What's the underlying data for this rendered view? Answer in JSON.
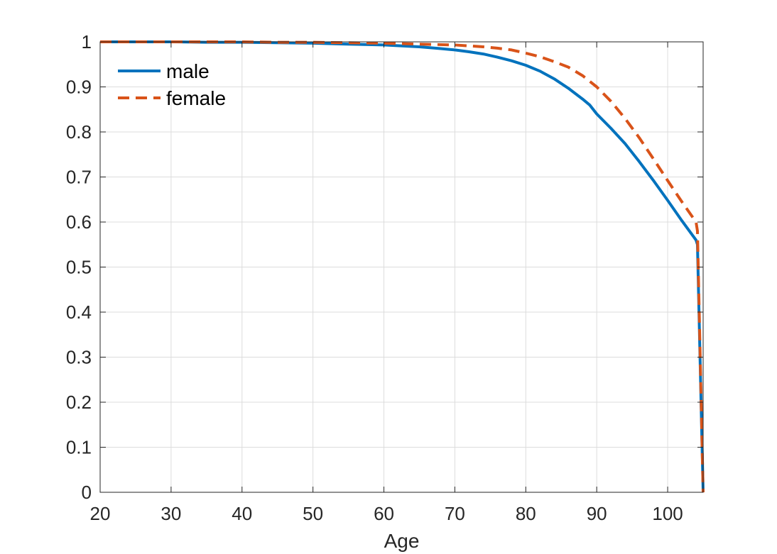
{
  "chart_data": {
    "type": "line",
    "title": "",
    "xlabel": "Age",
    "ylabel": "",
    "xlim": [
      20,
      105
    ],
    "ylim": [
      0,
      1
    ],
    "xticks": [
      20,
      30,
      40,
      50,
      60,
      70,
      80,
      90,
      100
    ],
    "yticks": [
      0,
      0.1,
      0.2,
      0.3,
      0.4,
      0.5,
      0.6,
      0.7,
      0.8,
      0.9,
      1
    ],
    "xtick_labels": [
      "20",
      "30",
      "40",
      "50",
      "60",
      "70",
      "80",
      "90",
      "100"
    ],
    "ytick_labels": [
      "0",
      "0.1",
      "0.2",
      "0.3",
      "0.4",
      "0.5",
      "0.6",
      "0.7",
      "0.8",
      "0.9",
      "1"
    ],
    "grid": true,
    "legend_position": "top-left",
    "series": [
      {
        "name": "male",
        "color": "#0072BD",
        "style": "solid",
        "x": [
          20,
          25,
          30,
          35,
          40,
          45,
          50,
          55,
          60,
          65,
          68,
          70,
          72,
          74,
          76,
          78,
          80,
          82,
          84,
          86,
          88,
          89,
          90,
          92,
          94,
          96,
          98,
          100,
          102,
          104,
          104.2,
          105
        ],
        "y": [
          1.0,
          1.0,
          1.0,
          0.999,
          0.999,
          0.998,
          0.997,
          0.995,
          0.993,
          0.989,
          0.985,
          0.982,
          0.978,
          0.973,
          0.966,
          0.958,
          0.948,
          0.935,
          0.918,
          0.897,
          0.873,
          0.86,
          0.84,
          0.808,
          0.774,
          0.734,
          0.692,
          0.648,
          0.603,
          0.56,
          0.55,
          0.0
        ]
      },
      {
        "name": "female",
        "color": "#D95319",
        "style": "dashed",
        "x": [
          20,
          25,
          30,
          35,
          40,
          45,
          50,
          55,
          60,
          65,
          70,
          72,
          74,
          76,
          78,
          80,
          82,
          84,
          86,
          88,
          90,
          92,
          94,
          96,
          98,
          100,
          102,
          104,
          104.2,
          105
        ],
        "y": [
          1.0,
          1.0,
          1.0,
          1.0,
          1.0,
          0.999,
          0.999,
          0.998,
          0.997,
          0.995,
          0.993,
          0.991,
          0.989,
          0.986,
          0.982,
          0.975,
          0.967,
          0.956,
          0.944,
          0.925,
          0.9,
          0.868,
          0.83,
          0.787,
          0.74,
          0.692,
          0.645,
          0.6,
          0.58,
          0.0
        ]
      }
    ]
  }
}
